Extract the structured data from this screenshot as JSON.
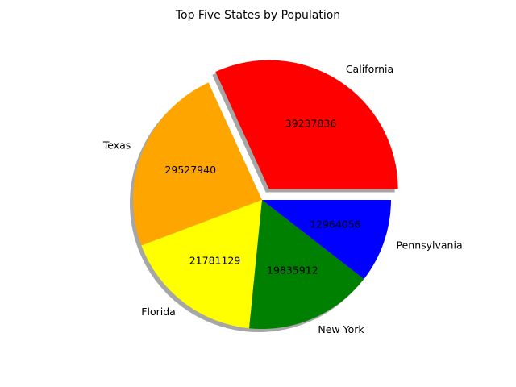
{
  "chart_data": {
    "type": "pie",
    "title": "Top Five States by Population",
    "categories": [
      "California",
      "Texas",
      "Florida",
      "New York",
      "Pennsylvania"
    ],
    "values": [
      39237836,
      29527940,
      21781129,
      19835912,
      12964056
    ],
    "value_labels": [
      "39237836",
      "29527940",
      "21781129",
      "19835912",
      "12964056"
    ],
    "colors": [
      "#ff0000",
      "#ffa500",
      "#ffff00",
      "#008000",
      "#0000ff"
    ],
    "exploded": [
      "California"
    ],
    "shadow": true,
    "start_angle_deg": 0,
    "direction": "counterclockwise"
  }
}
